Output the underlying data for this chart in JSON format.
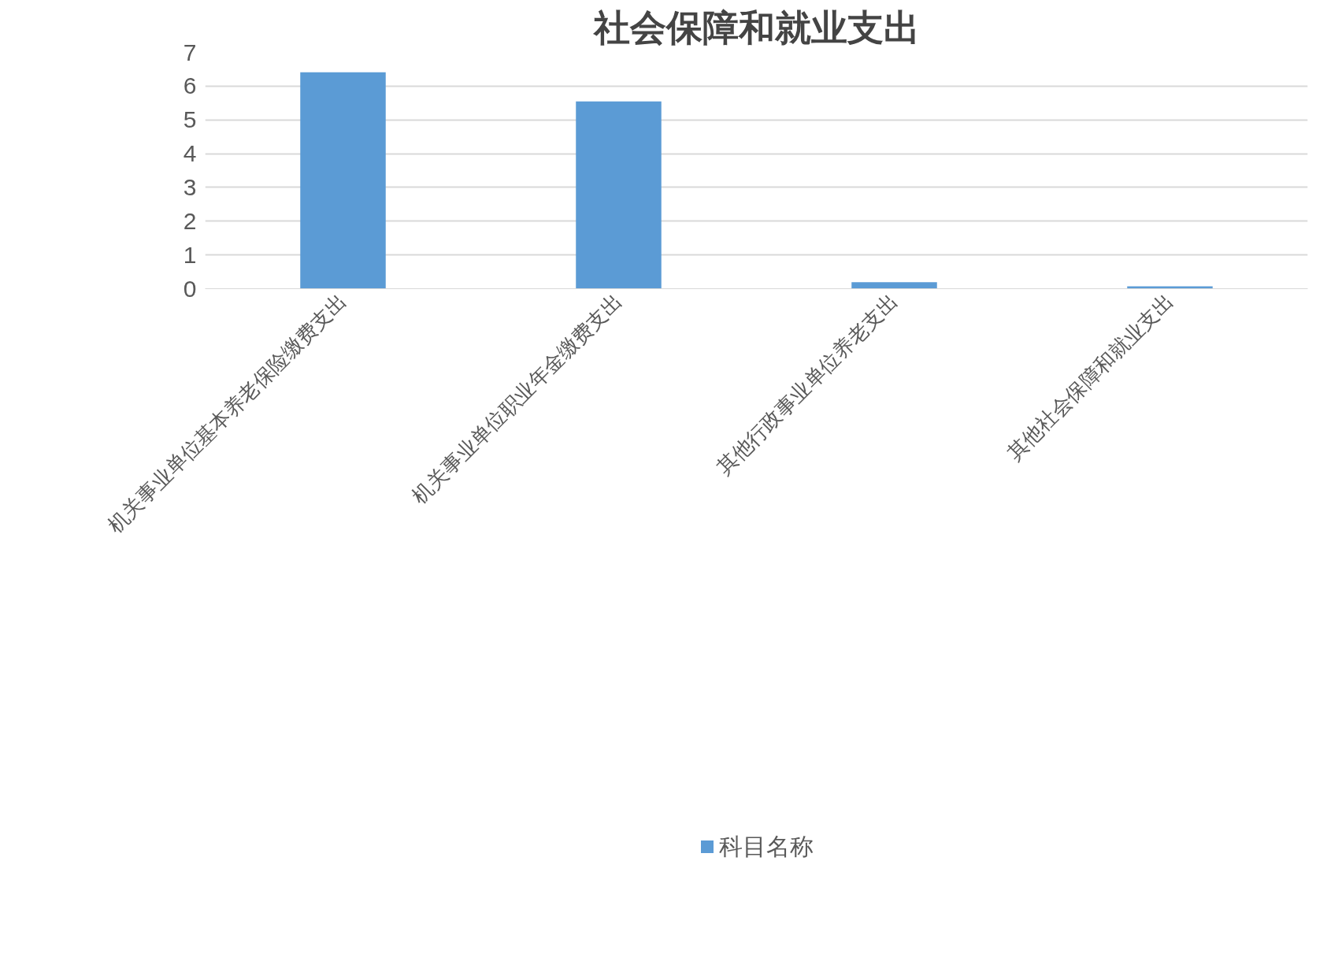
{
  "chart_data": {
    "type": "bar",
    "title": "社会保障和就业支出",
    "categories": [
      "机关事业单位基本养老保险缴费支出",
      "机关事业单位职业年金缴费支出",
      "其他行政事业单位养老支出",
      "其他社会保障和就业支出"
    ],
    "series": [
      {
        "name": "科目名称",
        "color": "#5b9bd5",
        "values": [
          6.41,
          5.55,
          0.19,
          0.07
        ]
      }
    ],
    "ylim": [
      0,
      7
    ],
    "yticks": [
      0,
      1,
      2,
      3,
      4,
      5,
      6,
      7
    ],
    "grid": "y",
    "legend": "bottom"
  }
}
